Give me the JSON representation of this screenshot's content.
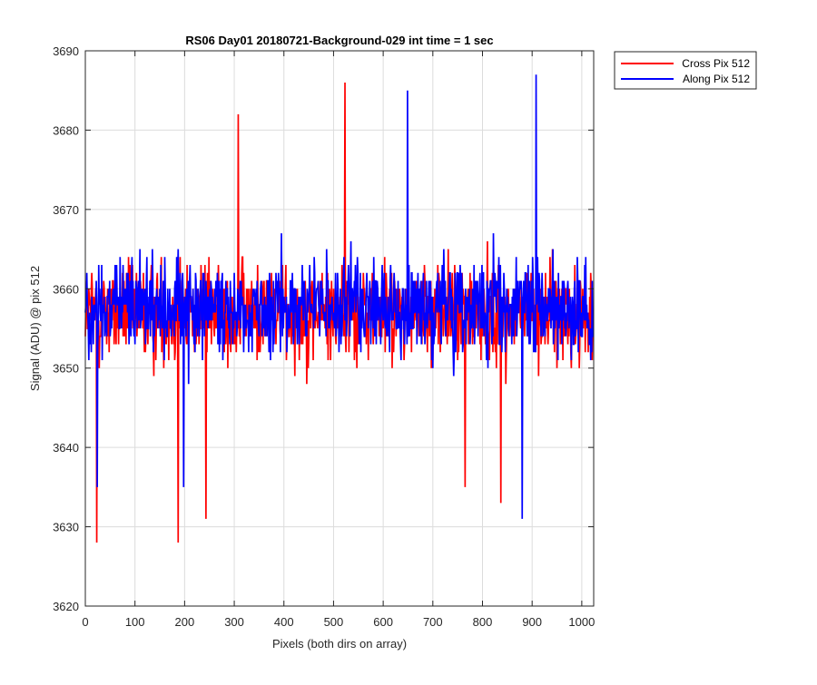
{
  "figure": {
    "background": "#ffffff"
  },
  "chart_data": {
    "type": "line",
    "title": "RS06 Day01 20180721-Background-029 int time = 1 sec",
    "xlabel": "Pixels (both dirs on array)",
    "ylabel": "Signal (ADU) @ pix 512",
    "xlim": [
      0,
      1024
    ],
    "ylim": [
      3620,
      3690
    ],
    "xticks": [
      0,
      100,
      200,
      300,
      400,
      500,
      600,
      700,
      800,
      900,
      1000
    ],
    "yticks": [
      3620,
      3630,
      3640,
      3650,
      3660,
      3670,
      3680,
      3690
    ],
    "grid": true,
    "legend_placement": "outside-top-right",
    "noise_mean_approx": 3657,
    "series": [
      {
        "name": "Cross Pix 512",
        "color": "#ff0000",
        "n_points": 1024,
        "y_range_observed": [
          3628,
          3686
        ],
        "key_points": [
          {
            "x": 23,
            "y": 3628
          },
          {
            "x": 187,
            "y": 3628
          },
          {
            "x": 243,
            "y": 3631
          },
          {
            "x": 308,
            "y": 3682
          },
          {
            "x": 523,
            "y": 3686
          },
          {
            "x": 765,
            "y": 3635
          },
          {
            "x": 837,
            "y": 3633
          }
        ]
      },
      {
        "name": "Along Pix 512",
        "color": "#0000ff",
        "n_points": 1024,
        "y_range_observed": [
          3631,
          3687
        ],
        "key_points": [
          {
            "x": 24,
            "y": 3635
          },
          {
            "x": 198,
            "y": 3635
          },
          {
            "x": 649,
            "y": 3685
          },
          {
            "x": 880,
            "y": 3631
          },
          {
            "x": 908,
            "y": 3687
          }
        ]
      }
    ]
  }
}
